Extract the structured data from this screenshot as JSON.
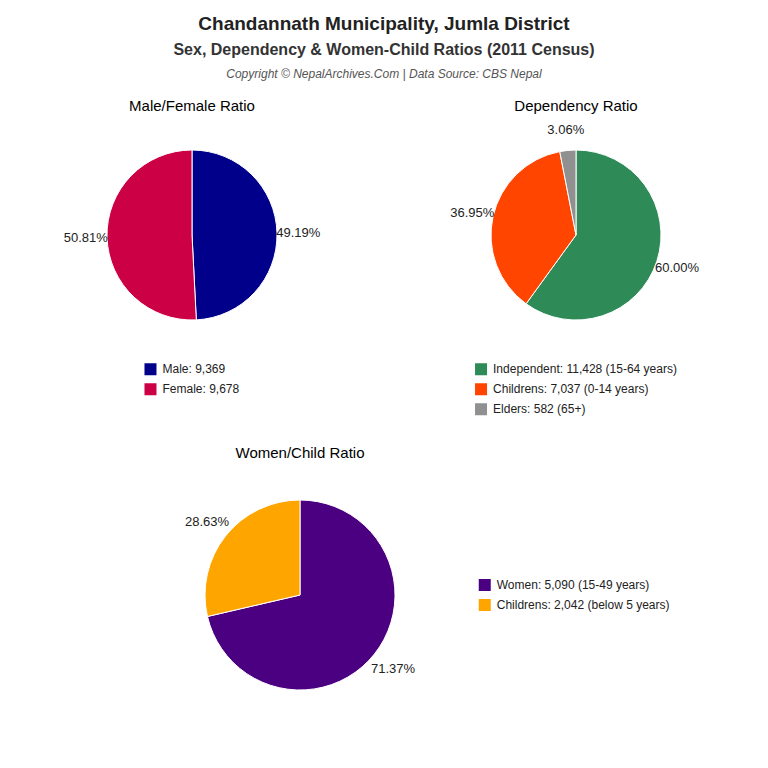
{
  "title": "Chandannath Municipality, Jumla District",
  "subtitle": "Sex, Dependency & Women-Child Ratios (2011 Census)",
  "annotations": [
    "Copyright © NepalArchives.Com | Data Source: CBS Nepal"
  ],
  "chart_data": [
    {
      "type": "pie",
      "title": "Male/Female Ratio",
      "categories": [
        "Male: 9,369",
        "Female: 9,678"
      ],
      "values": [
        49.19,
        50.81
      ],
      "value_labels": [
        "49.19%",
        "50.81%"
      ],
      "colors": [
        "#00008B",
        "#CC0044"
      ],
      "data_labels": true,
      "legend": "bottom"
    },
    {
      "type": "pie",
      "title": "Dependency Ratio",
      "categories": [
        "Independent: 11,428 (15-64 years)",
        "Childrens: 7,037 (0-14 years)",
        "Elders: 582 (65+)"
      ],
      "values": [
        60.0,
        36.95,
        3.06
      ],
      "value_labels": [
        "60.00%",
        "36.95%",
        "3.06%"
      ],
      "colors": [
        "#2E8B57",
        "#FF4500",
        "#909090"
      ],
      "data_labels": true,
      "legend": "bottom"
    },
    {
      "type": "pie",
      "title": "Women/Child Ratio",
      "categories": [
        "Women: 5,090 (15-49 years)",
        "Childrens: 2,042 (below 5 years)"
      ],
      "values": [
        71.37,
        28.63
      ],
      "value_labels": [
        "71.37%",
        "28.63%"
      ],
      "colors": [
        "#4B0082",
        "#FFA500"
      ],
      "data_labels": true,
      "legend": "right"
    }
  ]
}
